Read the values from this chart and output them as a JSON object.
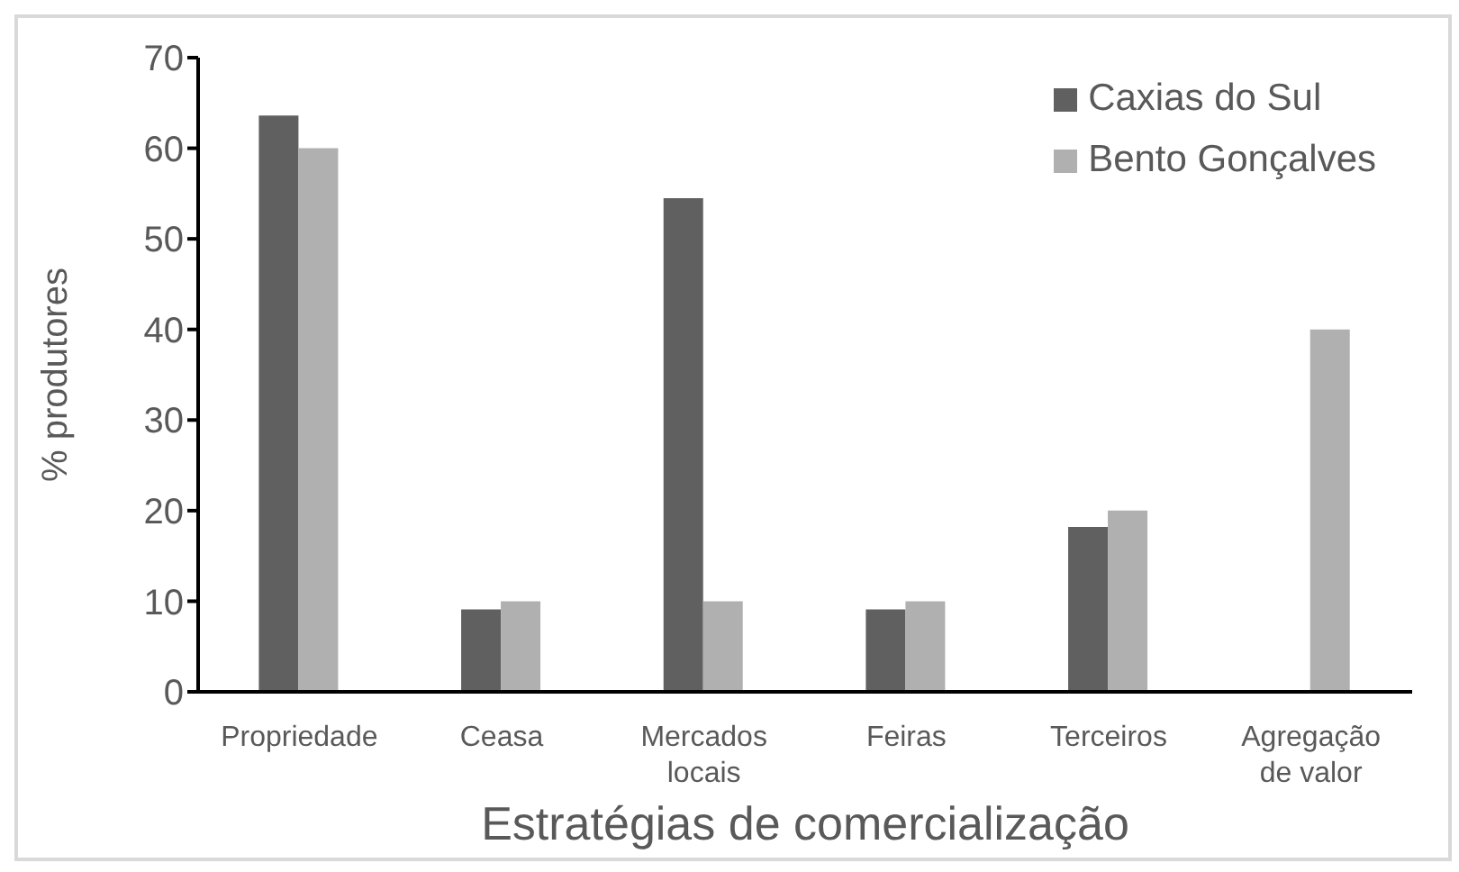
{
  "chart_data": {
    "type": "bar",
    "xlabel": "Estratégias de comercialização",
    "ylabel": "% produtores",
    "categories": [
      "Propriedade",
      "Ceasa",
      "Mercados locais",
      "Feiras",
      "Terceiros",
      "Agregação de valor"
    ],
    "series": [
      {
        "name": "Caxias do Sul",
        "color": "#606060",
        "values": [
          63.6,
          9.1,
          54.5,
          9.1,
          18.2,
          0
        ]
      },
      {
        "name": "Bento Gonçalves",
        "color": "#b0b0b0",
        "values": [
          60,
          10,
          10,
          10,
          20,
          40
        ]
      }
    ],
    "ylim": [
      0,
      70
    ],
    "yticks": [
      0,
      10,
      20,
      30,
      40,
      50,
      60,
      70
    ],
    "grid": false,
    "legend": "top right"
  }
}
